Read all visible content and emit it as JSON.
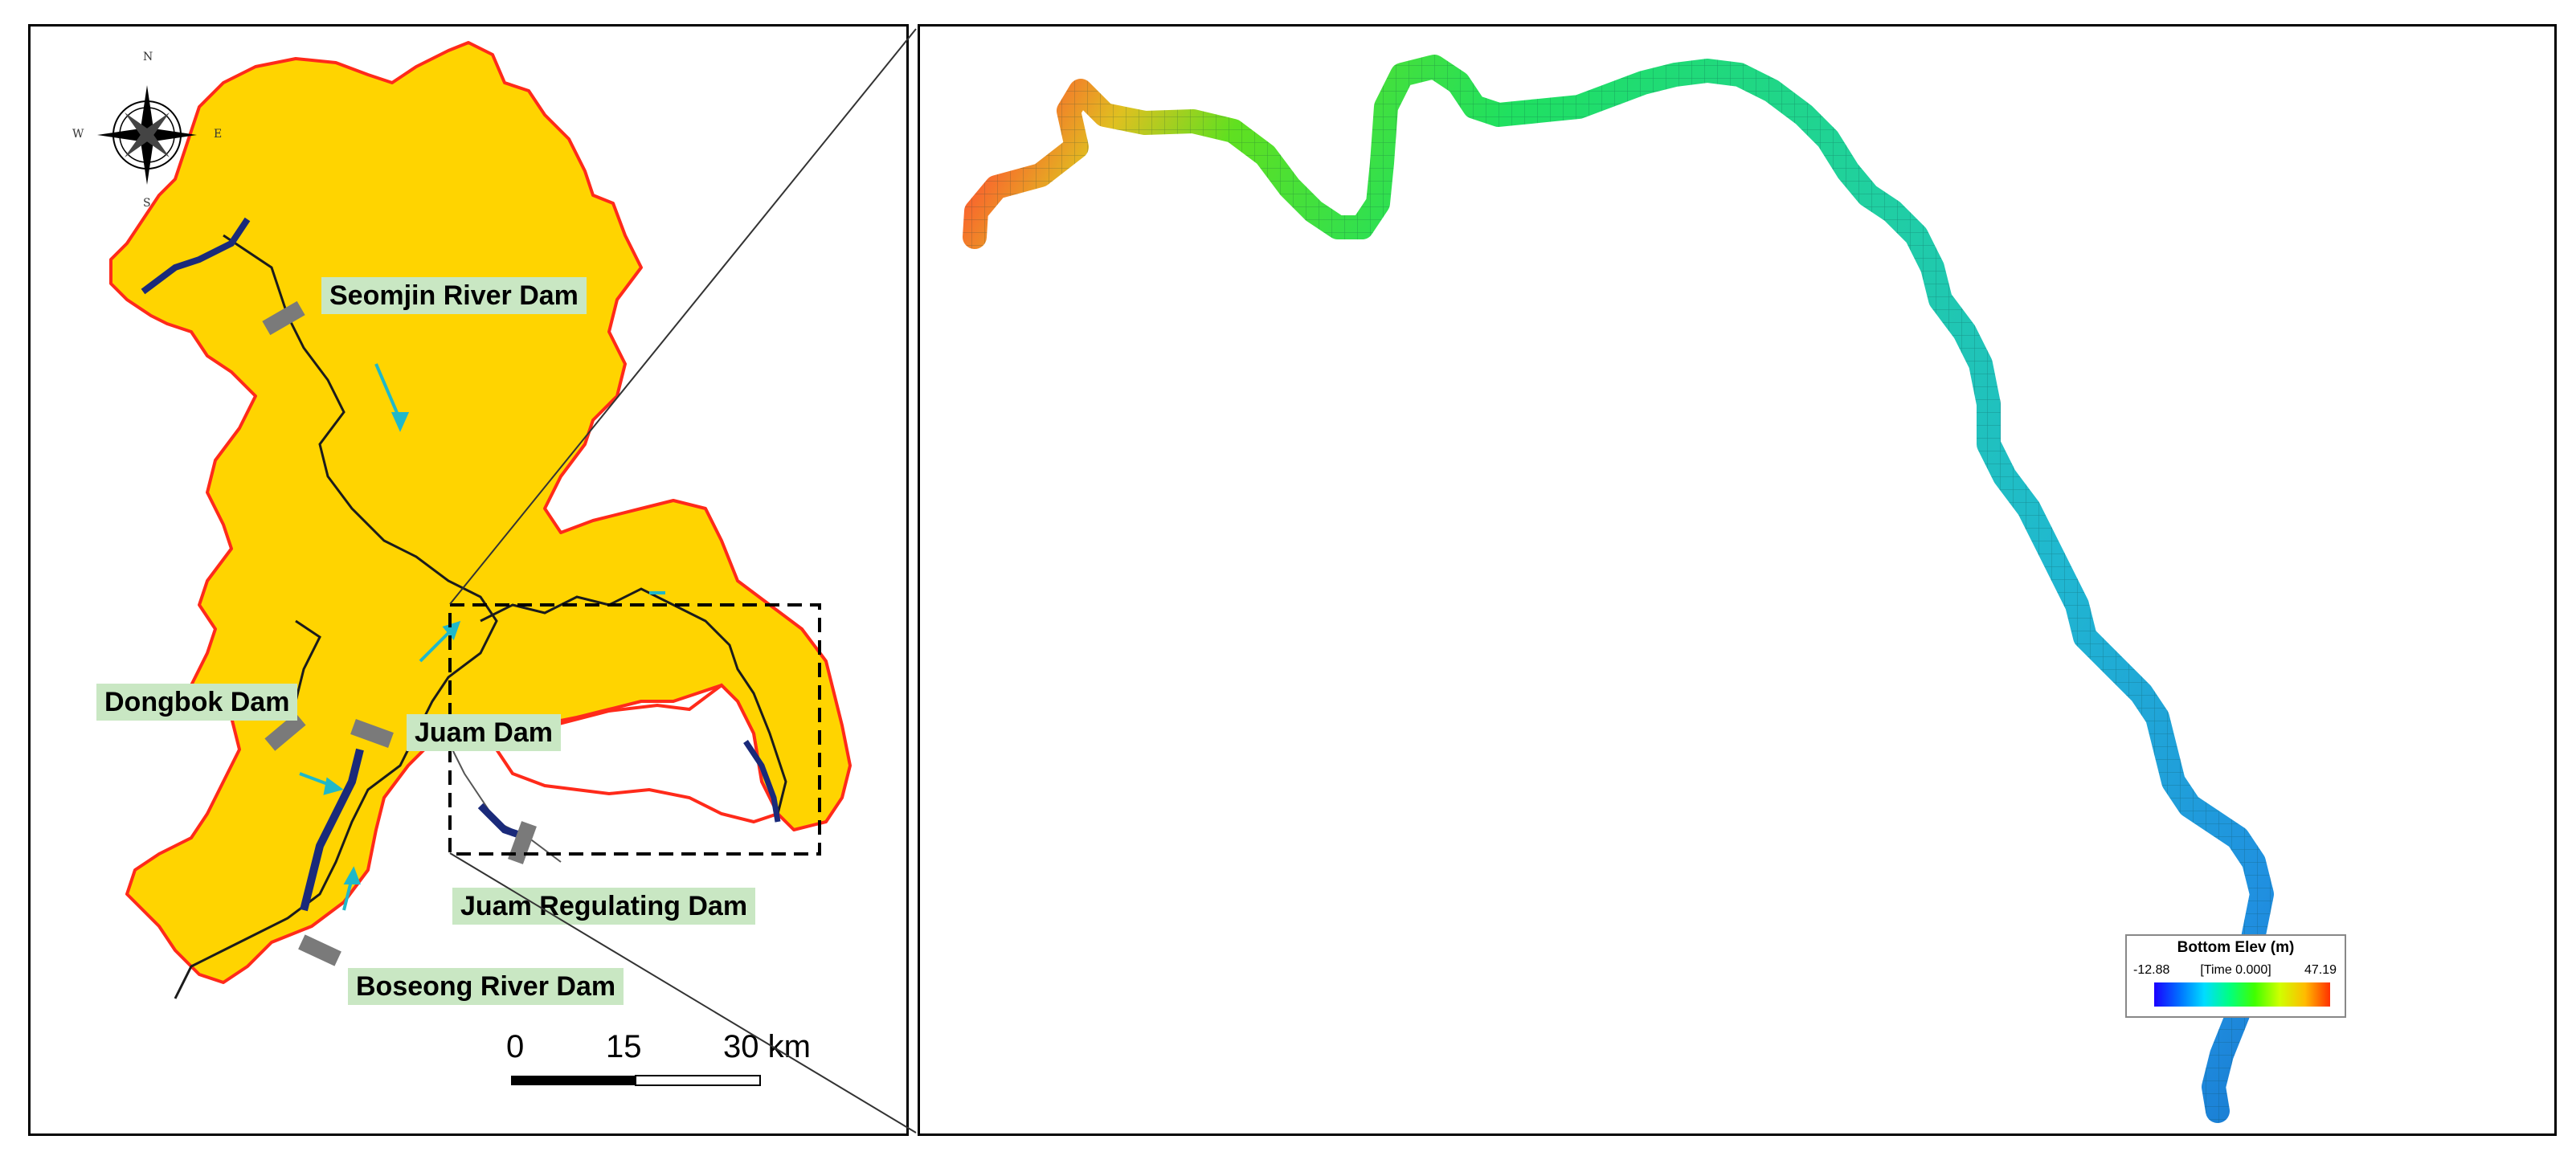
{
  "map": {
    "dams": [
      {
        "id": "seomjin",
        "label": "Seomjin River Dam"
      },
      {
        "id": "dongbok",
        "label": "Dongbok Dam"
      },
      {
        "id": "juam",
        "label": "Juam Dam"
      },
      {
        "id": "juam-regulating",
        "label": "Juam Regulating Dam"
      },
      {
        "id": "boseong",
        "label": "Boseong River Dam"
      }
    ],
    "compass": {
      "n": "N",
      "s": "S",
      "e": "E",
      "w": "W"
    },
    "scale_bar": {
      "ticks": [
        "0",
        "15",
        "30 km"
      ]
    },
    "colors": {
      "basin_fill": "#ffd400",
      "basin_outline": "#ff2a1a",
      "river": "#1b1b1b",
      "reservoir": "#1a2a7a",
      "dam_marker": "#7a7a7a",
      "flow_arrow": "#1fb8c9",
      "label_bg": "#c9e7c3"
    }
  },
  "legend": {
    "title": "Bottom Elev (m)",
    "min": "-12.88",
    "max": "47.19",
    "time": "[Time 0.000]",
    "colors": [
      "#1a00ff",
      "#0070ff",
      "#00ddff",
      "#00ff80",
      "#40ff00",
      "#d0ff00",
      "#ffbb00",
      "#ff3000"
    ]
  }
}
